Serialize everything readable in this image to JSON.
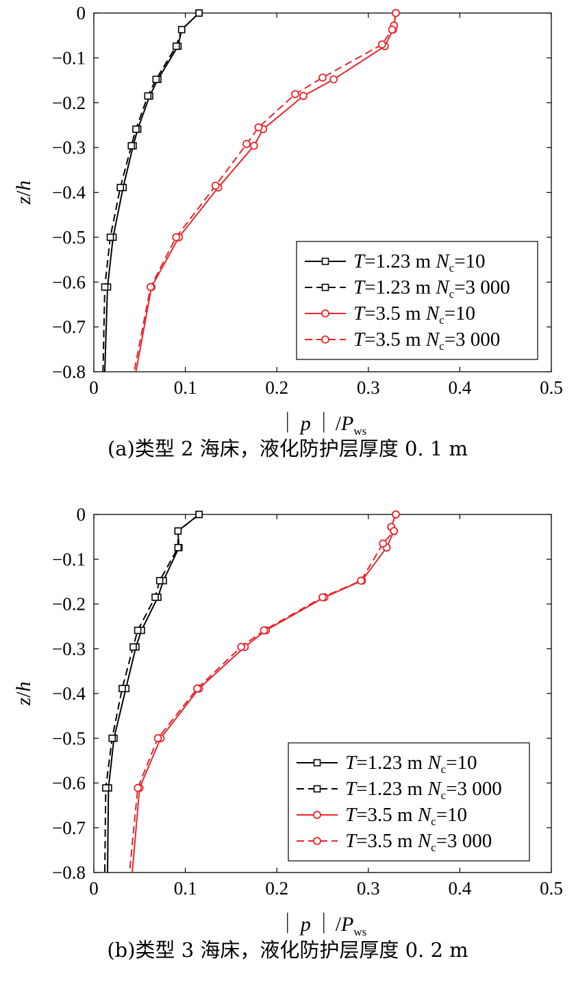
{
  "chart_data": [
    {
      "type": "line",
      "caption": "(a)类型 2 海床，液化防护层厚度 0. 1 m",
      "xlabel": {
        "bar": "｜",
        "p": "p",
        "slash": "/",
        "P": "P",
        "sub": "ws"
      },
      "ylabel": {
        "z": "z",
        "slash": "/",
        "h": "h"
      },
      "xlim": [
        0,
        0.5
      ],
      "ylim": [
        -0.8,
        0
      ],
      "xticks": [
        "0",
        "0.1",
        "0.2",
        "0.3",
        "0.4",
        "0.5"
      ],
      "yticks": [
        "0",
        "−0.1",
        "−0.2",
        "−0.3",
        "−0.4",
        "−0.5",
        "−0.6",
        "−0.7",
        "−0.8"
      ],
      "legend_position": "bottom-right",
      "series": [
        {
          "legend": {
            "a": "T",
            "b": "=1.23 m ",
            "c": "N",
            "d": "c",
            "e": "=10"
          },
          "color": "#000000",
          "dash": false,
          "y": [
            0,
            -0.037,
            -0.074,
            -0.148,
            -0.185,
            -0.259,
            -0.296,
            -0.389,
            -0.5,
            -0.611,
            -0.8
          ],
          "x": [
            0.115,
            0.096,
            0.092,
            0.07,
            0.061,
            0.048,
            0.043,
            0.032,
            0.021,
            0.015,
            0.012
          ]
        },
        {
          "legend": {
            "a": "T",
            "b": "=1.23 m ",
            "c": "N",
            "d": "c",
            "e": "=3 000"
          },
          "color": "#000000",
          "dash": true,
          "y": [
            0,
            -0.037,
            -0.074,
            -0.148,
            -0.185,
            -0.259,
            -0.296,
            -0.389,
            -0.5,
            -0.611,
            -0.8
          ],
          "x": [
            0.115,
            0.096,
            0.09,
            0.068,
            0.059,
            0.046,
            0.041,
            0.029,
            0.018,
            0.012,
            0.01
          ]
        },
        {
          "legend": {
            "a": "T",
            "b": "=3.5 m ",
            "c": "N",
            "d": "c",
            "e": "=10"
          },
          "color": "#e8232a",
          "dash": false,
          "y": [
            0,
            -0.028,
            -0.037,
            -0.074,
            -0.148,
            -0.185,
            -0.259,
            -0.296,
            -0.389,
            -0.5,
            -0.611,
            -0.8
          ],
          "x": [
            0.33,
            0.328,
            0.327,
            0.318,
            0.262,
            0.229,
            0.185,
            0.175,
            0.136,
            0.093,
            0.063,
            0.046
          ]
        },
        {
          "legend": {
            "a": "T",
            "b": "=3.5 m ",
            "c": "N",
            "d": "c",
            "e": "=3 000"
          },
          "color": "#e8232a",
          "dash": true,
          "y": [
            0,
            -0.028,
            -0.037,
            -0.07,
            -0.144,
            -0.181,
            -0.255,
            -0.292,
            -0.385,
            -0.5,
            -0.611,
            -0.8
          ],
          "x": [
            0.33,
            0.328,
            0.326,
            0.315,
            0.25,
            0.22,
            0.18,
            0.167,
            0.133,
            0.09,
            0.062,
            0.044
          ]
        }
      ]
    },
    {
      "type": "line",
      "caption": "(b)类型 3 海床，液化防护层厚度 0. 2 m",
      "xlabel": {
        "bar": "｜",
        "p": "p",
        "slash": "/",
        "P": "P",
        "sub": "ws"
      },
      "ylabel": {
        "z": "z",
        "slash": "/",
        "h": "h"
      },
      "xlim": [
        0,
        0.5
      ],
      "ylim": [
        -0.8,
        0
      ],
      "xticks": [
        "0",
        "0.1",
        "0.2",
        "0.3",
        "0.4",
        "0.5"
      ],
      "yticks": [
        "0",
        "−0.1",
        "−0.2",
        "−0.3",
        "−0.4",
        "−0.5",
        "−0.6",
        "−0.7",
        "−0.8"
      ],
      "legend_position": "bottom-right",
      "series": [
        {
          "legend": {
            "a": "T",
            "b": "=1.23 m ",
            "c": "N",
            "d": "c",
            "e": "=10"
          },
          "color": "#000000",
          "dash": false,
          "y": [
            0,
            -0.037,
            -0.074,
            -0.148,
            -0.185,
            -0.259,
            -0.296,
            -0.389,
            -0.5,
            -0.611,
            -0.8
          ],
          "x": [
            0.115,
            0.092,
            0.093,
            0.076,
            0.07,
            0.052,
            0.046,
            0.035,
            0.022,
            0.016,
            0.015
          ]
        },
        {
          "legend": {
            "a": "T",
            "b": "=1.23 m ",
            "c": "N",
            "d": "c",
            "e": "=3 000"
          },
          "color": "#000000",
          "dash": true,
          "y": [
            0,
            -0.037,
            -0.074,
            -0.148,
            -0.185,
            -0.259,
            -0.296,
            -0.389,
            -0.5,
            -0.611,
            -0.8
          ],
          "x": [
            0.115,
            0.092,
            0.092,
            0.072,
            0.067,
            0.048,
            0.043,
            0.031,
            0.02,
            0.013,
            0.012
          ]
        },
        {
          "legend": {
            "a": "T",
            "b": "=3.5 m ",
            "c": "N",
            "d": "c",
            "e": "=10"
          },
          "color": "#e8232a",
          "dash": false,
          "y": [
            0,
            -0.028,
            -0.037,
            -0.074,
            -0.148,
            -0.185,
            -0.259,
            -0.296,
            -0.389,
            -0.5,
            -0.611,
            -0.8
          ],
          "x": [
            0.33,
            0.325,
            0.328,
            0.32,
            0.293,
            0.252,
            0.188,
            0.165,
            0.115,
            0.073,
            0.05,
            0.042
          ]
        },
        {
          "legend": {
            "a": "T",
            "b": "=3.5 m ",
            "c": "N",
            "d": "c",
            "e": "=3 000"
          },
          "color": "#e8232a",
          "dash": true,
          "y": [
            0,
            -0.028,
            -0.037,
            -0.065,
            -0.148,
            -0.185,
            -0.259,
            -0.296,
            -0.389,
            -0.5,
            -0.611,
            -0.8
          ],
          "x": [
            0.33,
            0.325,
            0.328,
            0.316,
            0.292,
            0.25,
            0.186,
            0.161,
            0.113,
            0.07,
            0.048,
            0.039
          ]
        }
      ]
    }
  ]
}
